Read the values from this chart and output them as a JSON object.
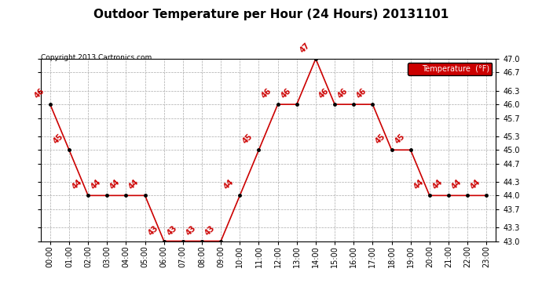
{
  "title": "Outdoor Temperature per Hour (24 Hours) 20131101",
  "copyright_text": "Copyright 2013 Cartronics.com",
  "legend_label": "Temperature  (°F)",
  "hours": [
    0,
    1,
    2,
    3,
    4,
    5,
    6,
    7,
    8,
    9,
    10,
    11,
    12,
    13,
    14,
    15,
    16,
    17,
    18,
    19,
    20,
    21,
    22,
    23
  ],
  "temperatures": [
    46,
    45,
    44,
    44,
    44,
    44,
    43,
    43,
    43,
    43,
    44,
    45,
    46,
    46,
    47,
    46,
    46,
    46,
    45,
    45,
    44,
    44,
    44,
    44
  ],
  "x_labels": [
    "00:00",
    "01:00",
    "02:00",
    "03:00",
    "04:00",
    "05:00",
    "06:00",
    "07:00",
    "08:00",
    "09:00",
    "10:00",
    "11:00",
    "12:00",
    "13:00",
    "14:00",
    "15:00",
    "16:00",
    "17:00",
    "18:00",
    "19:00",
    "20:00",
    "21:00",
    "22:00",
    "23:00"
  ],
  "y_min": 43.0,
  "y_max": 47.0,
  "y_ticks": [
    43.0,
    43.3,
    43.7,
    44.0,
    44.3,
    44.7,
    45.0,
    45.3,
    45.7,
    46.0,
    46.3,
    46.7,
    47.0
  ],
  "line_color": "#CC0000",
  "marker_color": "#000000",
  "bg_color": "#ffffff",
  "grid_color": "#aaaaaa",
  "legend_bg": "#CC0000",
  "legend_text_color": "#ffffff",
  "title_fontsize": 11,
  "label_fontsize": 7,
  "tick_fontsize": 7,
  "data_label_fontsize": 7,
  "copyright_fontsize": 6.5
}
